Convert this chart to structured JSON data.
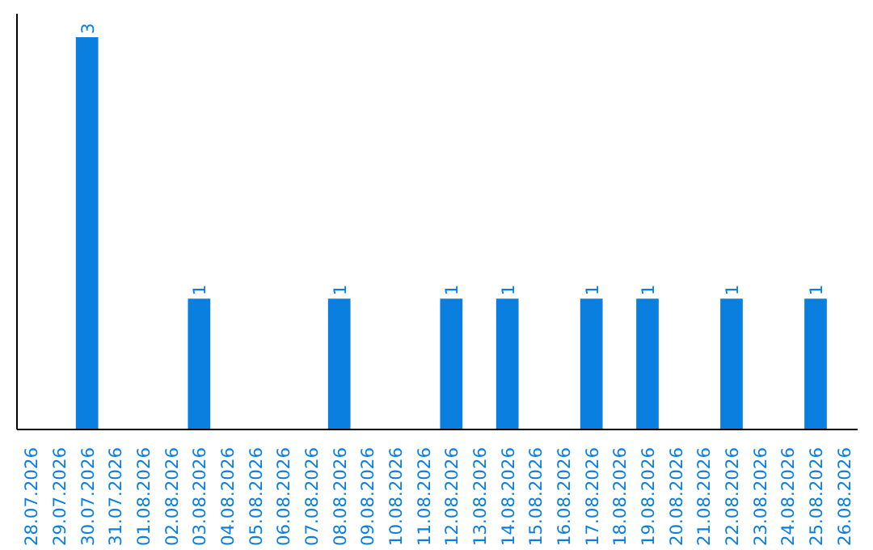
{
  "chart_data": {
    "type": "bar",
    "categories": [
      "28.07.2026",
      "29.07.2026",
      "30.07.2026",
      "31.07.2026",
      "01.08.2026",
      "02.08.2026",
      "03.08.2026",
      "04.08.2026",
      "05.08.2026",
      "06.08.2026",
      "07.08.2026",
      "08.08.2026",
      "09.08.2026",
      "10.08.2026",
      "11.08.2026",
      "12.08.2026",
      "13.08.2026",
      "14.08.2026",
      "15.08.2026",
      "16.08.2026",
      "17.08.2026",
      "18.08.2026",
      "19.08.2026",
      "20.08.2026",
      "21.08.2026",
      "22.08.2026",
      "23.08.2026",
      "24.08.2026",
      "25.08.2026",
      "26.08.2026"
    ],
    "values": [
      0,
      0,
      3,
      0,
      0,
      0,
      1,
      0,
      0,
      0,
      0,
      1,
      0,
      0,
      0,
      1,
      0,
      1,
      0,
      0,
      1,
      0,
      1,
      0,
      0,
      1,
      0,
      0,
      1,
      0
    ],
    "value_labels": [
      null,
      null,
      "3",
      null,
      null,
      null,
      "1",
      null,
      null,
      null,
      null,
      "1",
      null,
      null,
      null,
      "1",
      null,
      "1",
      null,
      null,
      "1",
      null,
      "1",
      null,
      null,
      "1",
      null,
      null,
      "1",
      null
    ],
    "color": "#0a7fe0",
    "grid": false,
    "tick_labels": "x"
  }
}
